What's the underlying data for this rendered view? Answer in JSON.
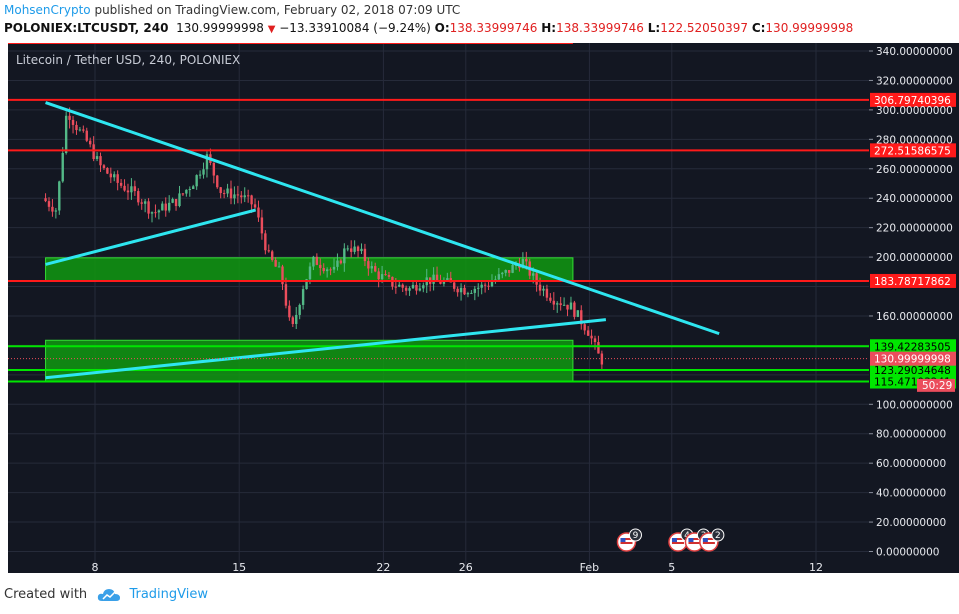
{
  "header": {
    "author": "MohsenCrypto",
    "published_text": "published on TradingView.com, February 02, 2018 07:09 UTC",
    "symbol": "POLONIEX:LTCUSDT, 240",
    "last_price": "130.99999998",
    "change": "−13.33910084 (−9.24%)",
    "open_label": "O:",
    "open": "138.33999746",
    "high_label": "H:",
    "high": "138.33999746",
    "low_label": "L:",
    "low": "122.52050397",
    "close_label": "C:",
    "close": "130.99999998"
  },
  "footer": {
    "created_with": "Created with",
    "brand": "TradingView"
  },
  "colors": {
    "background": "#131722",
    "grid": "#262b3a",
    "up": "#53b987",
    "down": "#eb4d5c",
    "resistance": "#ff1a1a",
    "support": "#00e600",
    "trendline": "#2ee6f0",
    "zone_fill": "#119911"
  },
  "chart_data": {
    "type": "candlestick",
    "title": "Litecoin / Tether USD, 240, POLONIEX",
    "ylim": [
      0,
      360
    ],
    "y_ticks": [
      0,
      20,
      40,
      60,
      80,
      100,
      120,
      140,
      160,
      180,
      200,
      220,
      240,
      260,
      280,
      300,
      320,
      340
    ],
    "y_tick_labels": [
      "0.00000000",
      "20.00000000",
      "40.00000000",
      "60.00000000",
      "80.00000000",
      "100.00000000",
      "120.00000000",
      "140.00000000",
      "160.00000000",
      "180.00000000",
      "200.00000000",
      "220.00000000",
      "240.00000000",
      "260.00000000",
      "280.00000000",
      "300.00000000",
      "320.00000000",
      "340.00000000"
    ],
    "x_ticks": [
      "8",
      "15",
      "22",
      "26",
      "Feb",
      "5",
      "12"
    ],
    "x_range_days": [
      5.6,
      12.7
    ],
    "x_tick_days": [
      8,
      15,
      22,
      26,
      32,
      36,
      43
    ],
    "ohlc_anchors": [
      [
        5.6,
        240
      ],
      [
        6.3,
        232
      ],
      [
        6.8,
        300
      ],
      [
        7.3,
        288
      ],
      [
        7.8,
        278
      ],
      [
        8.4,
        262
      ],
      [
        9.3,
        250
      ],
      [
        10.2,
        242
      ],
      [
        11.0,
        230
      ],
      [
        12.1,
        238
      ],
      [
        13.0,
        252
      ],
      [
        13.6,
        268
      ],
      [
        14.3,
        244
      ],
      [
        15.2,
        242
      ],
      [
        15.9,
        235
      ],
      [
        16.6,
        200
      ],
      [
        17.2,
        188
      ],
      [
        17.7,
        148
      ],
      [
        18.3,
        182
      ],
      [
        18.8,
        198
      ],
      [
        19.8,
        190
      ],
      [
        20.4,
        208
      ],
      [
        21.1,
        202
      ],
      [
        21.7,
        190
      ],
      [
        22.6,
        182
      ],
      [
        23.4,
        178
      ],
      [
        24.2,
        185
      ],
      [
        25.1,
        183
      ],
      [
        26.1,
        178
      ],
      [
        27.0,
        180
      ],
      [
        28.0,
        188
      ],
      [
        28.9,
        198
      ],
      [
        29.6,
        182
      ],
      [
        30.4,
        172
      ],
      [
        31.3,
        166
      ],
      [
        32.1,
        150
      ],
      [
        32.7,
        130
      ]
    ],
    "candle_interval_days": 0.1667,
    "price_lines": [
      {
        "value": 306.79740396,
        "label": "306.79740396",
        "color": "#ff1a1a",
        "kind": "resistance"
      },
      {
        "value": 272.51586575,
        "label": "272.51586575",
        "color": "#ff1a1a",
        "kind": "resistance"
      },
      {
        "value": 183.78717862,
        "label": "183.78717862",
        "color": "#ff1a1a",
        "kind": "resistance"
      },
      {
        "value": 139.42283505,
        "label": "139.42283505",
        "color": "#00e600",
        "kind": "support"
      },
      {
        "value": 123.29034648,
        "label": "123.29034648",
        "color": "#00e600",
        "kind": "support"
      },
      {
        "value": 115.47103241,
        "label": "115.47103241",
        "color": "#00e600",
        "kind": "support"
      }
    ],
    "zones": [
      {
        "y_from": 183.8,
        "y_to": 199.5,
        "x_from_day": 5.6,
        "x_to_day": 31.2
      },
      {
        "y_from": 115.5,
        "y_to": 143.5,
        "x_from_day": 5.6,
        "x_to_day": 31.2
      }
    ],
    "trendlines": [
      {
        "from": [
          5.6,
          305
        ],
        "to": [
          38.3,
          148
        ]
      },
      {
        "from": [
          5.6,
          195
        ],
        "to": [
          15.8,
          232
        ]
      },
      {
        "from": [
          5.6,
          118
        ],
        "to": [
          32.8,
          157.5
        ]
      }
    ],
    "last_price_label": "130.99999998",
    "countdown_label": "50:29",
    "red_top_line_end_day": 31.2,
    "events": [
      {
        "day": 33.8,
        "count": "9"
      },
      {
        "day": 36.3,
        "count": "4"
      },
      {
        "day": 37.1,
        "count": "3"
      },
      {
        "day": 37.8,
        "count": "2"
      }
    ]
  }
}
